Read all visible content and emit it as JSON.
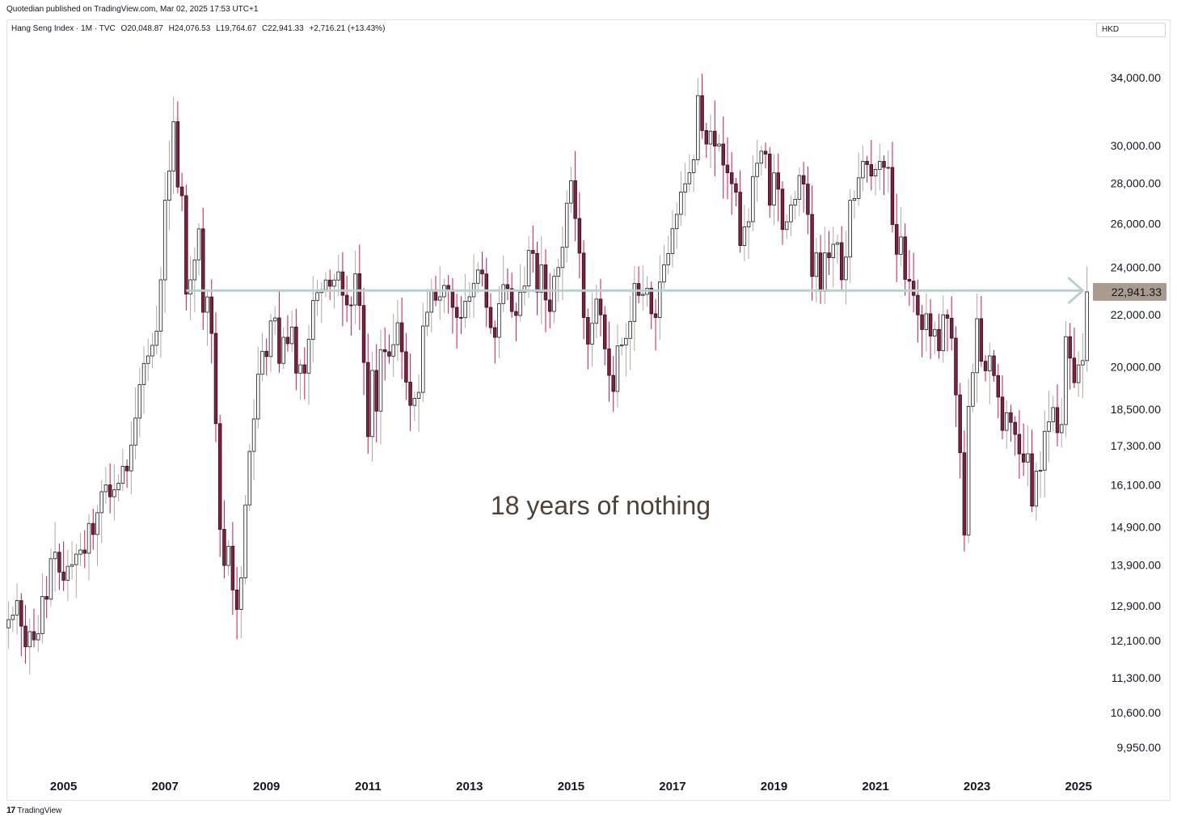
{
  "header": {
    "publisher_line": "Quotedian published on TradingView.com, Mar 02, 2025 17:53 UTC+1"
  },
  "legend": {
    "symbol": "Hang Seng Index · 1M · TVC",
    "open": "O20,048.87",
    "high": "H24,076.53",
    "low": "L19,764.67",
    "close": "C22,941.33",
    "change": "+2,716.21 (+13.43%)"
  },
  "currency_button": "HKD",
  "footer": {
    "logo": "17",
    "brand": "TradingView"
  },
  "colors": {
    "up": "#ffffff",
    "down": "#8e1b3a",
    "outline": "#131722",
    "wick_up": "#b2a89a",
    "wick_down": "#c2185b",
    "arrow": "#b8cfcf",
    "last_price_bg": "#a99c8f",
    "annotation": "#4e4236"
  },
  "chart_data": {
    "type": "candlestick",
    "scale": "log",
    "x_axis": {
      "ticks": [
        "2005",
        "2007",
        "2009",
        "2011",
        "2013",
        "2015",
        "2017",
        "2019",
        "2021",
        "2023",
        "2025"
      ]
    },
    "y_axis": {
      "ticks": [
        9950,
        10600,
        11300,
        12100,
        12900,
        13900,
        14900,
        16100,
        17300,
        18500,
        20000,
        22000,
        24000,
        26000,
        28000,
        30000,
        34000
      ],
      "tick_labels": [
        "9,950.00",
        "10,600.00",
        "11,300.00",
        "12,100.00",
        "12,900.00",
        "13,900.00",
        "14,900.00",
        "16,100.00",
        "17,300.00",
        "18,500.00",
        "20,000.00",
        "22,000.00",
        "24,000.00",
        "26,000.00",
        "28,000.00",
        "30,000.00",
        "34,000.00"
      ],
      "range": [
        9500,
        36500
      ]
    },
    "time_range": [
      "2003-12",
      "2025-03"
    ],
    "last_price": {
      "value": 22941.33,
      "label": "22,941.33"
    },
    "horizontal_arrow": {
      "from": "2007-06",
      "to": "2025-02",
      "value": 23000
    },
    "annotation": {
      "text": "18 years of nothing",
      "date": "2015-08",
      "value": 15500
    },
    "closes": [
      12575,
      12681,
      13021,
      12426,
      11962,
      12300,
      12116,
      12254,
      13120,
      13054,
      14060,
      14230,
      13721,
      13516,
      13867,
      13909,
      14179,
      14287,
      14202,
      15000,
      14700,
      15300,
      15900,
      16100,
      15753,
      15956,
      16150,
      16662,
      16520,
      17321,
      18200,
      19350,
      20120,
      20400,
      20800,
      21350,
      23455,
      27142,
      28643,
      31352,
      27812,
      27370,
      22849,
      23456,
      24331,
      25756,
      22102,
      22731,
      21260,
      18016,
      14840,
      13888,
      14387,
      13278,
      12812,
      13576,
      15520,
      17121,
      18171,
      19724,
      20573,
      20375,
      21752,
      21873,
      20122,
      21109,
      20863,
      21510,
      19765,
      20069,
      19765,
      21029,
      22580,
      22910,
      23035,
      23448,
      23182,
      23447,
      23801,
      22800,
      22399,
      22398,
      23720,
      22377,
      20156,
      17592,
      19864,
      18434,
      20635,
      20556,
      20390,
      20824,
      21680,
      20556,
      19441,
      18629,
      18870,
      19080,
      21551,
      22104,
      23033,
      22596,
      22737,
      23216,
      23035,
      22300,
      21891,
      21883,
      22553,
      22737,
      23306,
      23882,
      23710,
      22300,
      21485,
      21108,
      22454,
      23250,
      23082,
      22133,
      21970,
      22932,
      23190,
      24757,
      24620,
      22932,
      24108,
      22605,
      22133,
      23606,
      23990,
      24900,
      27000,
      28133,
      26250,
      24636,
      21891,
      20846,
      21656,
      22640,
      21996,
      20665,
      19683,
      19112,
      20777,
      20815,
      21067,
      21734,
      23297,
      22794,
      22840,
      23098,
      22039,
      21891,
      23361,
      24112,
      24615,
      25764,
      26451,
      27554,
      27976,
      28550,
      29238,
      32887,
      30845,
      30093,
      30809,
      29979,
      30093,
      28955,
      28550,
      27980,
      27546,
      24979,
      25846,
      26095,
      28350,
      29051,
      29699,
      29543,
      26901,
      28543,
      27700,
      25725,
      26092,
      26906,
      27188,
      28400,
      27961,
      26446,
      23603,
      24644,
      22961,
      24643,
      24427,
      25037,
      25110,
      23459,
      24458,
      27141,
      27231,
      28283,
      29152,
      28980,
      28378,
      28724,
      29151,
      28828,
      28828,
      25961,
      24583,
      25377,
      23475,
      23398,
      22798,
      21996,
      21412,
      22039,
      21156,
      21415,
      20594,
      21997,
      21860,
      21076,
      18992,
      17080,
      14687,
      18597,
      19781,
      21842,
      20201,
      19851,
      20400,
      19678,
      18916,
      17795,
      18382,
      18058,
      17664,
      17043,
      16788,
      17047,
      15485,
      16511,
      16541,
      17763,
      18079,
      18555,
      17719,
      17985,
      21133,
      20317,
      19424,
      20064,
      20225,
      22941
    ],
    "extremes": {
      "high": 33484,
      "low": 10676
    }
  }
}
